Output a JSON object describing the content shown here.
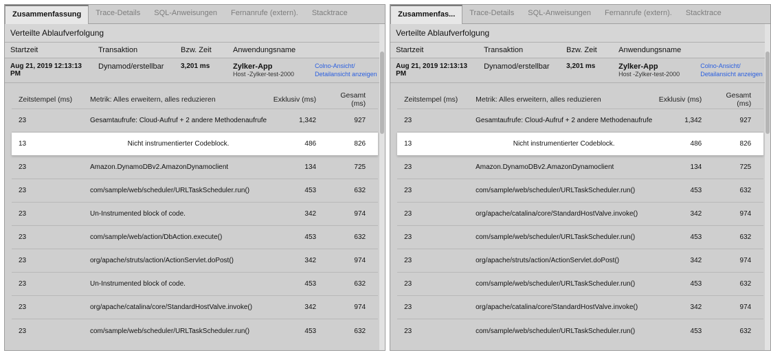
{
  "panes": [
    {
      "tabs": [
        {
          "label": "Zusammenfassung",
          "active": true
        },
        {
          "label": "Trace-Details"
        },
        {
          "label": "SQL-Anweisungen"
        },
        {
          "label": "Fernanrufe (extern)."
        },
        {
          "label": "Stacktrace"
        }
      ],
      "section_title": "Verteilte Ablaufverfolgung",
      "cols": {
        "start": "Startzeit",
        "txn": "Transaktion",
        "tt": "Bzw. Zeit",
        "app": "Anwendungsname"
      },
      "summary": {
        "start": "Aug 21, 2019 12:13:13 PM",
        "txn": "Dynamod/erstellbar",
        "tt": "3,201 ms",
        "app_title": "Zylker-App",
        "app_host": "Host -Zylker-test-2000",
        "link1": "Colno-Ansicht/",
        "link2": "Detailansicht anzeigen"
      },
      "table": {
        "h_ts": "Zeitstempel (ms)",
        "h_met": "Metrik: Alles erweitern, alles reduzieren",
        "h_ex": "Exklusiv (ms)",
        "h_tot": "Gesamt (ms)",
        "rows": [
          {
            "ts": "23",
            "met": "Gesamtaufrufe: Cloud-Aufruf + 2 andere Methodenaufrufe",
            "ex": "1,342",
            "tot": "927",
            "hl": false,
            "met_center": true
          },
          {
            "ts": "13",
            "met": "Nicht instrumentierter Codeblock.",
            "ex": "486",
            "tot": "826",
            "hl": true,
            "met_center": true
          },
          {
            "ts": "23",
            "met": "Amazon.DynamoDBv2.AmazonDynamoclient",
            "ex": "134",
            "tot": "725",
            "hl": false
          },
          {
            "ts": "23",
            "met": "com/sample/web/scheduler/URLTaskScheduler.run()",
            "ex": "453",
            "tot": "632",
            "hl": false
          },
          {
            "ts": "23",
            "met": "Un-Instrumented block of code.",
            "ex": "342",
            "tot": "974",
            "hl": false
          },
          {
            "ts": "23",
            "met": "com/sample/web/action/DbAction.execute()",
            "ex": "453",
            "tot": "632",
            "hl": false
          },
          {
            "ts": "23",
            "met": "org/apache/struts/action/ActionServlet.doPost()",
            "ex": "342",
            "tot": "974",
            "hl": false
          },
          {
            "ts": "23",
            "met": "Un-Instrumented block of code.",
            "ex": "453",
            "tot": "632",
            "hl": false
          },
          {
            "ts": "23",
            "met": "org/apache/catalina/core/StandardHostValve.invoke()",
            "ex": "342",
            "tot": "974",
            "hl": false
          },
          {
            "ts": "23",
            "met": "com/sample/web/scheduler/URLTaskScheduler.run()",
            "ex": "453",
            "tot": "632",
            "hl": false
          }
        ]
      }
    },
    {
      "tabs": [
        {
          "label": "Zusammenfas...",
          "active": true
        },
        {
          "label": "Trace-Details"
        },
        {
          "label": "SQL-Anweisungen"
        },
        {
          "label": "Fernanrufe (extern)."
        },
        {
          "label": "Stacktrace"
        }
      ],
      "section_title": "Verteilte Ablaufverfolgung",
      "cols": {
        "start": "Startzeit",
        "txn": "Transaktion",
        "tt": "Bzw. Zeit",
        "app": "Anwendungsname"
      },
      "summary": {
        "start": "Aug 21, 2019 12:13:13 PM",
        "txn": "Dynamod/erstellbar",
        "tt": "3,201 ms",
        "app_title": "Zylker-App",
        "app_host": "Host -Zylker-test-2000",
        "link1": "Colno-Ansicht/",
        "link2": "Detailansicht anzeigen"
      },
      "table": {
        "h_ts": "Zeitstempel (ms)",
        "h_met": "Metrik: Alles erweitern, alles reduzieren",
        "h_ex": "Exklusiv (ms)",
        "h_tot": "Gesamt (ms)",
        "rows": [
          {
            "ts": "23",
            "met": "Gesamtaufrufe: Cloud-Aufruf + 2 andere Methodenaufrufe",
            "ex": "1,342",
            "tot": "927",
            "hl": false,
            "met_center": true
          },
          {
            "ts": "13",
            "met": "Nicht instrumentierter Codeblock.",
            "ex": "486",
            "tot": "826",
            "hl": true,
            "met_center": true
          },
          {
            "ts": "23",
            "met": "Amazon.DynamoDBv2.AmazonDynamoclient",
            "ex": "134",
            "tot": "725",
            "hl": false
          },
          {
            "ts": "23",
            "met": "com/sample/web/scheduler/URLTaskScheduler.run()",
            "ex": "453",
            "tot": "632",
            "hl": false
          },
          {
            "ts": "23",
            "met": "org/apache/catalina/core/StandardHostValve.invoke()",
            "ex": "342",
            "tot": "974",
            "hl": false
          },
          {
            "ts": "23",
            "met": "com/sample/web/scheduler/URLTaskScheduler.run()",
            "ex": "453",
            "tot": "632",
            "hl": false
          },
          {
            "ts": "23",
            "met": "org/apache/struts/action/ActionServlet.doPost()",
            "ex": "342",
            "tot": "974",
            "hl": false
          },
          {
            "ts": "23",
            "met": "com/sample/web/scheduler/URLTaskScheduler.run()",
            "ex": "453",
            "tot": "632",
            "hl": false
          },
          {
            "ts": "23",
            "met": "org/apache/catalina/core/StandardHostValve.invoke()",
            "ex": "342",
            "tot": "974",
            "hl": false
          },
          {
            "ts": "23",
            "met": "com/sample/web/scheduler/URLTaskScheduler.run()",
            "ex": "453",
            "tot": "632",
            "hl": false
          }
        ]
      }
    }
  ],
  "colors": {
    "pane_bg": "#cfcfcf",
    "border": "#9c9c9c",
    "link": "#2a5fe0",
    "highlight_bg": "#ffffff"
  }
}
